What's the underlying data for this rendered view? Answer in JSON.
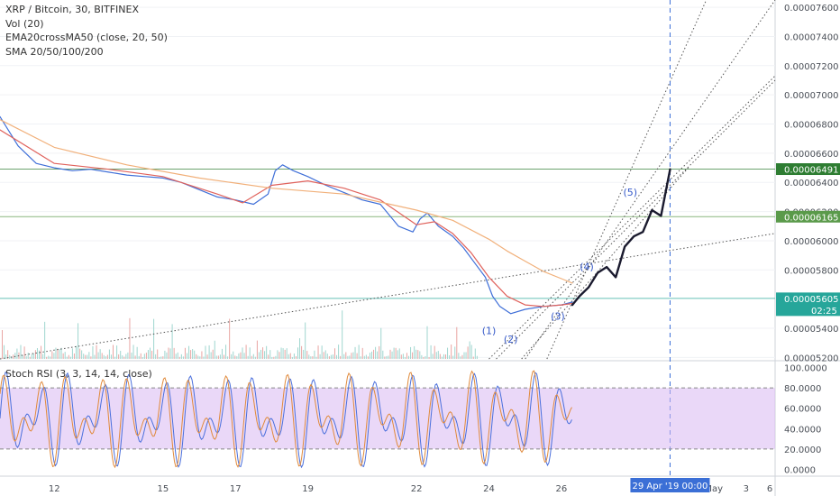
{
  "header": {
    "symbol_line": "XRP / Bitcoin, 30, BITFINEX",
    "vol_line": "Vol (20)",
    "ema_line": "EMA20crossMA50 (close, 20, 50)",
    "sma_line": "SMA 20/50/100/200"
  },
  "rsi_panel": {
    "title": "Stoch RSI (3, 3, 14, 14, close)"
  },
  "colors": {
    "price_line": "#3f6fd8",
    "ema_line": "#e0625c",
    "ma_line": "#f1b07a",
    "rsi_band": "#d9b8f2",
    "projection": "#1a1a2e",
    "level_high": "#2e7d32",
    "level_low": "#5a9a4a",
    "level_current": "#26a69a",
    "current_price_bg": "#26a69a",
    "time_marker": "#3b6fd6",
    "wave_label": "#3559c9"
  },
  "chart_data": [
    {
      "type": "line",
      "panel": "price",
      "yaxis_ticks": [
        "0.00007600",
        "0.00007400",
        "0.00007200",
        "0.00007000",
        "0.00006800",
        "0.00006600",
        "0.00006400",
        "0.00006200",
        "0.00006000",
        "0.00005800",
        "0.00005400",
        "0.00005200"
      ],
      "ylim": [
        5.19e-05,
        7.65e-05
      ],
      "xaxis_ticks": [
        "12",
        "15",
        "17",
        "19",
        "22",
        "24",
        "26",
        "May",
        "3",
        "6"
      ],
      "xaxis_highlight": [
        "29 Apr '19",
        "00:00"
      ],
      "series": [
        {
          "x": [
            10.5,
            11.0,
            11.5,
            12.0,
            12.5,
            13.0,
            13.5,
            14.0,
            14.5,
            15.0,
            15.5,
            16.0,
            16.5,
            17.0,
            17.5,
            17.9,
            18.1,
            18.3,
            18.6,
            19.0,
            19.5,
            20.0,
            20.5,
            21.0,
            21.5,
            21.9,
            22.1,
            22.3,
            22.6,
            23.0,
            23.3,
            23.6,
            23.9,
            24.1,
            24.3,
            24.6,
            25.0,
            25.5,
            26.0,
            26.3
          ],
          "y": [
            6.85e-05,
            6.65e-05,
            6.53e-05,
            6.5e-05,
            6.48e-05,
            6.49e-05,
            6.47e-05,
            6.45e-05,
            6.44e-05,
            6.43e-05,
            6.4e-05,
            6.35e-05,
            6.3e-05,
            6.28e-05,
            6.25e-05,
            6.32e-05,
            6.48e-05,
            6.52e-05,
            6.48e-05,
            6.44e-05,
            6.38e-05,
            6.33e-05,
            6.28e-05,
            6.25e-05,
            6.1e-05,
            6.06e-05,
            6.15e-05,
            6.19e-05,
            6.1e-05,
            6.03e-05,
            5.95e-05,
            5.85e-05,
            5.75e-05,
            5.62e-05,
            5.55e-05,
            5.5e-05,
            5.53e-05,
            5.55e-05,
            5.56e-05,
            5.58e-05
          ]
        },
        {
          "x": [
            10.5,
            12.0,
            13.5,
            15.0,
            16.5,
            17.2,
            18.0,
            19.0,
            20.0,
            21.0,
            22.0,
            22.5,
            23.0,
            23.5,
            24.0,
            24.5,
            25.0,
            25.5,
            26.0,
            26.3
          ],
          "y": [
            6.76e-05,
            6.53e-05,
            6.49e-05,
            6.44e-05,
            6.32e-05,
            6.26e-05,
            6.38e-05,
            6.41e-05,
            6.36e-05,
            6.28e-05,
            6.11e-05,
            6.13e-05,
            6.05e-05,
            5.92e-05,
            5.75e-05,
            5.62e-05,
            5.56e-05,
            5.55e-05,
            5.56e-05,
            5.57e-05
          ]
        },
        {
          "x": [
            10.5,
            12.0,
            14.0,
            16.0,
            18.0,
            20.0,
            22.0,
            23.0,
            24.0,
            24.5,
            25.0,
            25.5,
            26.0,
            26.3
          ],
          "y": [
            6.83e-05,
            6.64e-05,
            6.52e-05,
            6.43e-05,
            6.36e-05,
            6.32e-05,
            6.21e-05,
            6.14e-05,
            6.01e-05,
            5.93e-05,
            5.86e-05,
            5.79e-05,
            5.74e-05,
            5.71e-05
          ]
        },
        {
          "x": [
            26.3,
            26.5,
            26.75,
            27.0,
            27.25,
            27.5,
            27.75,
            28.0,
            28.25,
            28.5,
            28.75,
            29.0
          ],
          "y": [
            5.56e-05,
            5.62e-05,
            5.68e-05,
            5.78e-05,
            5.82e-05,
            5.75e-05,
            5.96e-05,
            6.03e-05,
            6.06e-05,
            6.21e-05,
            6.17e-05,
            6.49e-05
          ]
        }
      ],
      "horizontal_levels": [
        {
          "value": "0.00006491",
          "label": "0.00006491",
          "role": "high"
        },
        {
          "value": "0.00006165",
          "label": "0.00006165",
          "role": "low"
        },
        {
          "value": "0.00005605",
          "label": "0.00005605",
          "role": "current",
          "countdown": "02:25"
        }
      ],
      "wave_labels": [
        "(1)",
        "(2)",
        "(3)",
        "(4)",
        "(5)"
      ]
    },
    {
      "type": "area",
      "panel": "stoch_rsi",
      "title": "Stoch RSI (3, 3, 14, 14, close)",
      "ylim": [
        -5,
        105
      ],
      "band": [
        20,
        80
      ],
      "yaxis_ticks": [
        "100.0000",
        "80.0000",
        "60.0000",
        "40.0000",
        "20.0000",
        "0.0000"
      ]
    }
  ]
}
